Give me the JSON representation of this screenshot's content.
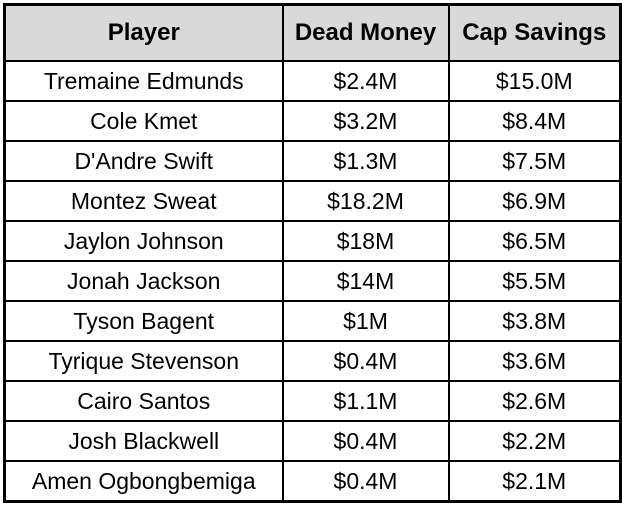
{
  "colors": {
    "header_bg": "#d9d9d9",
    "border": "#000000",
    "text": "#000000",
    "row_bg": "#ffffff"
  },
  "table": {
    "columns": [
      "Player",
      "Dead Money",
      "Cap Savings"
    ],
    "rows": [
      [
        "Tremaine Edmunds",
        "$2.4M",
        "$15.0M"
      ],
      [
        "Cole Kmet",
        "$3.2M",
        "$8.4M"
      ],
      [
        "D'Andre Swift",
        "$1.3M",
        "$7.5M"
      ],
      [
        "Montez Sweat",
        "$18.2M",
        "$6.9M"
      ],
      [
        "Jaylon Johnson",
        "$18M",
        "$6.5M"
      ],
      [
        "Jonah Jackson",
        "$14M",
        "$5.5M"
      ],
      [
        "Tyson Bagent",
        "$1M",
        "$3.8M"
      ],
      [
        "Tyrique Stevenson",
        "$0.4M",
        "$3.6M"
      ],
      [
        "Cairo Santos",
        "$1.1M",
        "$2.6M"
      ],
      [
        "Josh Blackwell",
        "$0.4M",
        "$2.2M"
      ],
      [
        "Amen Ogbongbemiga",
        "$0.4M",
        "$2.1M"
      ]
    ]
  },
  "chart_data": {
    "type": "table",
    "title": "",
    "columns": [
      "Player",
      "Dead Money",
      "Cap Savings"
    ],
    "rows": [
      {
        "player": "Tremaine Edmunds",
        "dead_money": "$2.4M",
        "cap_savings": "$15.0M"
      },
      {
        "player": "Cole Kmet",
        "dead_money": "$3.2M",
        "cap_savings": "$8.4M"
      },
      {
        "player": "D'Andre Swift",
        "dead_money": "$1.3M",
        "cap_savings": "$7.5M"
      },
      {
        "player": "Montez Sweat",
        "dead_money": "$18.2M",
        "cap_savings": "$6.9M"
      },
      {
        "player": "Jaylon Johnson",
        "dead_money": "$18M",
        "cap_savings": "$6.5M"
      },
      {
        "player": "Jonah Jackson",
        "dead_money": "$14M",
        "cap_savings": "$5.5M"
      },
      {
        "player": "Tyson Bagent",
        "dead_money": "$1M",
        "cap_savings": "$3.8M"
      },
      {
        "player": "Tyrique Stevenson",
        "dead_money": "$0.4M",
        "cap_savings": "$3.6M"
      },
      {
        "player": "Cairo Santos",
        "dead_money": "$1.1M",
        "cap_savings": "$2.6M"
      },
      {
        "player": "Josh Blackwell",
        "dead_money": "$0.4M",
        "cap_savings": "$2.2M"
      },
      {
        "player": "Amen Ogbongbemiga",
        "dead_money": "$0.4M",
        "cap_savings": "$2.1M"
      }
    ]
  }
}
